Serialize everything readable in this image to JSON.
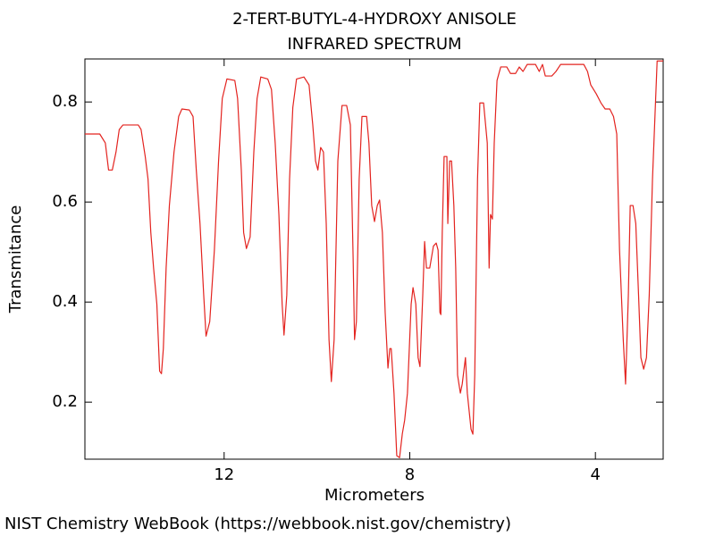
{
  "chart_data": {
    "type": "line",
    "title": "2-TERT-BUTYL-4-HYDROXY ANISOLE",
    "subtitle": "INFRARED SPECTRUM",
    "xlabel": "Micrometers",
    "ylabel": "Transmitance",
    "source": "NIST Chemistry WebBook (https://webbook.nist.gov/chemistry)",
    "xlim": [
      15,
      2.54
    ],
    "ylim": [
      0.086,
      0.886
    ],
    "xticks": [
      12,
      8,
      4
    ],
    "yticks": [
      0.2,
      0.4,
      0.6,
      0.8
    ],
    "x": [
      15.0,
      14.68,
      14.56,
      14.49,
      14.41,
      14.33,
      14.26,
      14.18,
      13.85,
      13.79,
      13.7,
      13.64,
      13.58,
      13.52,
      13.45,
      13.39,
      13.35,
      13.31,
      13.25,
      13.18,
      13.08,
      12.98,
      12.91,
      12.75,
      12.67,
      12.6,
      12.52,
      12.44,
      12.39,
      12.31,
      12.21,
      12.12,
      12.04,
      11.94,
      11.77,
      11.71,
      11.63,
      11.58,
      11.52,
      11.44,
      11.36,
      11.29,
      11.21,
      11.06,
      10.98,
      10.9,
      10.82,
      10.75,
      10.71,
      10.65,
      10.59,
      10.52,
      10.44,
      10.28,
      10.17,
      10.09,
      10.03,
      9.98,
      9.92,
      9.86,
      9.8,
      9.74,
      9.69,
      9.63,
      9.55,
      9.46,
      9.36,
      9.28,
      9.22,
      9.19,
      9.15,
      9.09,
      9.03,
      8.93,
      8.88,
      8.82,
      8.76,
      8.7,
      8.65,
      8.59,
      8.53,
      8.47,
      8.43,
      8.4,
      8.34,
      8.28,
      8.22,
      8.16,
      8.11,
      8.05,
      7.97,
      7.93,
      7.87,
      7.82,
      7.78,
      7.72,
      7.68,
      7.64,
      7.57,
      7.49,
      7.43,
      7.39,
      7.35,
      7.33,
      7.3,
      7.26,
      7.2,
      7.18,
      7.14,
      7.1,
      7.05,
      7.01,
      6.97,
      6.91,
      6.87,
      6.8,
      6.76,
      6.72,
      6.68,
      6.64,
      6.6,
      6.54,
      6.49,
      6.41,
      6.33,
      6.29,
      6.26,
      6.22,
      6.18,
      6.12,
      6.04,
      5.91,
      5.83,
      5.72,
      5.64,
      5.56,
      5.47,
      5.29,
      5.21,
      5.14,
      5.08,
      4.94,
      4.85,
      4.75,
      4.25,
      4.17,
      4.1,
      3.98,
      3.88,
      3.79,
      3.69,
      3.61,
      3.54,
      3.48,
      3.4,
      3.35,
      3.29,
      3.25,
      3.19,
      3.13,
      3.07,
      3.02,
      2.96,
      2.9,
      2.84,
      2.77,
      2.67,
      2.54
    ],
    "series": [
      {
        "color": "#e3231f",
        "values": [
          0.736,
          0.736,
          0.718,
          0.664,
          0.664,
          0.7,
          0.745,
          0.754,
          0.754,
          0.745,
          0.691,
          0.646,
          0.539,
          0.468,
          0.396,
          0.262,
          0.257,
          0.307,
          0.468,
          0.593,
          0.7,
          0.771,
          0.786,
          0.784,
          0.771,
          0.664,
          0.557,
          0.414,
          0.332,
          0.361,
          0.504,
          0.682,
          0.807,
          0.846,
          0.843,
          0.807,
          0.664,
          0.539,
          0.507,
          0.53,
          0.7,
          0.807,
          0.85,
          0.846,
          0.825,
          0.718,
          0.575,
          0.396,
          0.334,
          0.414,
          0.646,
          0.789,
          0.846,
          0.85,
          0.834,
          0.754,
          0.682,
          0.664,
          0.709,
          0.7,
          0.557,
          0.325,
          0.241,
          0.325,
          0.682,
          0.793,
          0.793,
          0.754,
          0.486,
          0.325,
          0.361,
          0.646,
          0.771,
          0.771,
          0.718,
          0.593,
          0.561,
          0.593,
          0.604,
          0.539,
          0.379,
          0.268,
          0.307,
          0.307,
          0.218,
          0.093,
          0.089,
          0.137,
          0.164,
          0.218,
          0.396,
          0.429,
          0.396,
          0.289,
          0.271,
          0.414,
          0.521,
          0.468,
          0.468,
          0.512,
          0.518,
          0.504,
          0.379,
          0.375,
          0.539,
          0.691,
          0.691,
          0.557,
          0.682,
          0.682,
          0.593,
          0.468,
          0.254,
          0.218,
          0.236,
          0.289,
          0.218,
          0.182,
          0.146,
          0.136,
          0.254,
          0.646,
          0.798,
          0.798,
          0.718,
          0.468,
          0.575,
          0.566,
          0.718,
          0.843,
          0.87,
          0.87,
          0.857,
          0.857,
          0.87,
          0.861,
          0.875,
          0.875,
          0.861,
          0.875,
          0.852,
          0.852,
          0.861,
          0.875,
          0.875,
          0.861,
          0.834,
          0.816,
          0.798,
          0.786,
          0.786,
          0.771,
          0.736,
          0.504,
          0.325,
          0.236,
          0.414,
          0.593,
          0.593,
          0.557,
          0.414,
          0.289,
          0.266,
          0.289,
          0.414,
          0.646,
          0.882,
          0.882
        ]
      }
    ]
  }
}
